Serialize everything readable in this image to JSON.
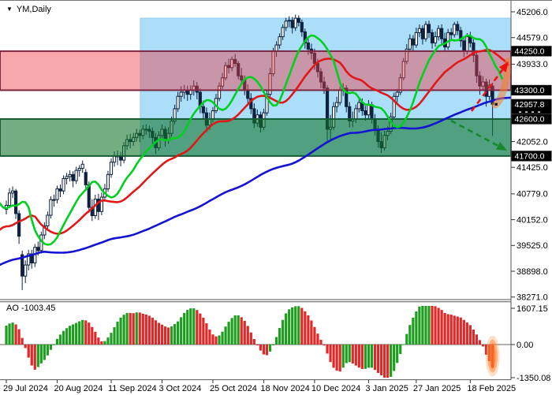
{
  "window": {
    "symbol": "YM,Daily",
    "dropdown_icon": "▼"
  },
  "price_axis": {
    "ticks": [
      45206.0,
      44579.0,
      43933.0,
      42052.0,
      41425.0,
      40779.0,
      40152.0,
      39525.0,
      38898.0,
      38271.0
    ],
    "badges": [
      44250.0,
      43300.0,
      42957.8,
      42600.0,
      41700.0
    ],
    "current_price": 42957.8
  },
  "time_axis": {
    "labels": [
      {
        "index": 0,
        "text": "29 Jul 2024"
      },
      {
        "index": 16,
        "text": "20 Aug 2024"
      },
      {
        "index": 33,
        "text": "11 Sep 2024"
      },
      {
        "index": 49,
        "text": "3 Oct 2024"
      },
      {
        "index": 65,
        "text": "25 Oct 2024"
      },
      {
        "index": 81,
        "text": "18 Nov 2024"
      },
      {
        "index": 97,
        "text": "10 Dec 2024"
      },
      {
        "index": 114,
        "text": "3 Jan 2025"
      },
      {
        "index": 129,
        "text": "27 Jan 2025"
      },
      {
        "index": 146,
        "text": "18 Feb 2025"
      }
    ]
  },
  "colors": {
    "candle_outline": "#0e2240",
    "candle_up_fill": "#ffffff",
    "candle_down_fill": "#0e2240",
    "lips_green": "#00d020",
    "teeth_red": "#e01818",
    "jaw_blue": "#1414d2",
    "ao_up": "#1e9e1e",
    "ao_down": "#e02828",
    "highlight_fill": "#abdef8",
    "highlight_edge": "#93cceb",
    "resistance_fill": "rgba(234,62,70,0.45)",
    "resistance_edge": "#7c2642",
    "support_fill": "rgba(16,118,42,0.58)",
    "support_edge": "#155c34",
    "arrow_up_red": "#ee1111",
    "arrow_down_green": "#17882c",
    "swoosh_orange": "rgba(250,128,40,0.55)",
    "badge_bg": "#000000",
    "badge_text": "#ffffff"
  },
  "chart_data": {
    "type": "candlestick+indicator",
    "symbol": "YM",
    "timeframe": "Daily",
    "price_range_visible": [
      38271.0,
      45206.0
    ],
    "zones": [
      {
        "name": "resistance-zone",
        "price_from": 43300.0,
        "price_to": 44250.0
      },
      {
        "name": "support-zone",
        "price_from": 41700.0,
        "price_to": 42600.0
      },
      {
        "name": "highlight-region",
        "start_bar_index": 42,
        "price_from": 41700.0,
        "price_to": 45050.0
      }
    ],
    "overlays": {
      "alligator": {
        "lips": {
          "period": 5,
          "shift": 3,
          "color": "#00d020"
        },
        "teeth": {
          "period": 13,
          "shift": 5,
          "color": "#e01818"
        },
        "jaw": {
          "period": 60,
          "shift": 8,
          "color": "#1414d2"
        }
      }
    },
    "indicator": {
      "name": "AO",
      "label": "AO -1003.45",
      "value": -1003.45,
      "axis_ticks": [
        "1607.15",
        "0.00",
        "-1350.08"
      ],
      "range": [
        -1350.08,
        1607.15
      ]
    },
    "annotations": [
      {
        "type": "arrow",
        "direction": "up",
        "color": "#ee1111",
        "from": [
          598,
          140
        ],
        "to": [
          645,
          77
        ],
        "target_price": 44250.0
      },
      {
        "type": "arrow",
        "direction": "down",
        "color": "#17882c",
        "from": [
          572,
          152
        ],
        "to": [
          643,
          190
        ],
        "target_price": 41700.0
      },
      {
        "type": "swoosh-highlight",
        "color": "rgba(250,128,40,0.55)"
      },
      {
        "type": "ao-bar-glow",
        "color": "orange"
      },
      {
        "type": "current-price-dot",
        "price": 42957.8
      }
    ],
    "preroll_closes": [
      38850,
      38900,
      38800,
      38750,
      38850,
      38900,
      38950,
      38900,
      38850,
      38950,
      39050,
      39150,
      39100,
      39200,
      39150,
      39300,
      39400,
      39350,
      39500,
      39700,
      40000,
      40250,
      40500,
      40900,
      41100,
      41200,
      41050,
      40850,
      40650,
      40250,
      40050,
      40350,
      40600,
      40650
    ],
    "candles": [
      [
        40400,
        40620,
        40280,
        40500
      ],
      [
        40500,
        40920,
        40430,
        40800
      ],
      [
        40800,
        40960,
        40680,
        40850
      ],
      [
        40850,
        40900,
        40170,
        40300
      ],
      [
        40300,
        40380,
        39560,
        39750
      ],
      [
        39300,
        39400,
        38440,
        38780
      ],
      [
        38780,
        39160,
        38610,
        39050
      ],
      [
        39050,
        39420,
        38920,
        39320
      ],
      [
        39320,
        39420,
        38960,
        39100
      ],
      [
        39100,
        39560,
        39000,
        39480
      ],
      [
        39480,
        39620,
        39280,
        39400
      ],
      [
        39400,
        39860,
        39330,
        39780
      ],
      [
        39780,
        40090,
        39680,
        40000
      ],
      [
        40000,
        40350,
        39920,
        40260
      ],
      [
        40260,
        40720,
        40180,
        40640
      ],
      [
        40640,
        40760,
        40470,
        40640
      ],
      [
        40640,
        40980,
        40550,
        40900
      ],
      [
        40900,
        41010,
        40700,
        40850
      ],
      [
        40850,
        41230,
        40770,
        41150
      ],
      [
        41150,
        41290,
        41010,
        41200
      ],
      [
        41200,
        41350,
        41080,
        41250
      ],
      [
        41250,
        41330,
        40940,
        41100
      ],
      [
        41100,
        41440,
        41020,
        41350
      ],
      [
        41350,
        41480,
        41200,
        41400
      ],
      [
        41400,
        41590,
        41290,
        41500
      ],
      [
        41300,
        41380,
        40870,
        41000
      ],
      [
        41000,
        41080,
        40320,
        40450
      ],
      [
        40450,
        40650,
        40120,
        40250
      ],
      [
        40250,
        40760,
        40170,
        40650
      ],
      [
        40650,
        40780,
        40140,
        40350
      ],
      [
        40350,
        40810,
        40260,
        40700
      ],
      [
        40700,
        41020,
        40590,
        40900
      ],
      [
        40900,
        41340,
        40830,
        41250
      ],
      [
        41250,
        41640,
        41170,
        41550
      ],
      [
        41550,
        41810,
        41440,
        41700
      ],
      [
        41700,
        41830,
        41480,
        41700
      ],
      [
        41700,
        41800,
        41450,
        41600
      ],
      [
        41600,
        42040,
        41520,
        41950
      ],
      [
        41950,
        42220,
        41850,
        42100
      ],
      [
        42100,
        42240,
        41890,
        42050
      ],
      [
        42050,
        42260,
        41950,
        42150
      ],
      [
        42150,
        42360,
        42050,
        42250
      ],
      [
        42250,
        42340,
        42040,
        42200
      ],
      [
        42200,
        42450,
        42110,
        42350
      ],
      [
        42350,
        42470,
        42220,
        42350
      ],
      [
        42350,
        42440,
        42140,
        42300
      ],
      [
        42300,
        42400,
        41990,
        42150
      ],
      [
        42150,
        42260,
        41750,
        41900
      ],
      [
        41900,
        42300,
        41830,
        42200
      ],
      [
        42200,
        42470,
        42090,
        42350
      ],
      [
        42350,
        42420,
        41930,
        42080
      ],
      [
        42080,
        42400,
        42000,
        42250
      ],
      [
        42250,
        42660,
        42170,
        42550
      ],
      [
        42550,
        42950,
        42470,
        42850
      ],
      [
        42850,
        43260,
        42770,
        43150
      ],
      [
        43150,
        43400,
        43020,
        43250
      ],
      [
        43250,
        43430,
        43090,
        43300
      ],
      [
        43300,
        43410,
        43040,
        43200
      ],
      [
        43200,
        43420,
        43070,
        43300
      ],
      [
        43300,
        43540,
        43170,
        43400
      ],
      [
        43400,
        43500,
        43080,
        43250
      ],
      [
        43250,
        43340,
        42740,
        42900
      ],
      [
        42900,
        43050,
        42590,
        42750
      ],
      [
        42750,
        42880,
        42280,
        42450
      ],
      [
        42450,
        42760,
        42340,
        42600
      ],
      [
        42600,
        42890,
        42520,
        42800
      ],
      [
        42800,
        43210,
        42740,
        43100
      ],
      [
        43100,
        43490,
        43030,
        43400
      ],
      [
        43400,
        43720,
        43330,
        43600
      ],
      [
        43600,
        43980,
        43540,
        43900
      ],
      [
        43900,
        44060,
        43710,
        43850
      ],
      [
        43850,
        44120,
        43760,
        44050
      ],
      [
        44050,
        44180,
        43870,
        43950
      ],
      [
        43950,
        44010,
        43560,
        43650
      ],
      [
        43650,
        43840,
        43470,
        43550
      ],
      [
        43550,
        43660,
        43180,
        43300
      ],
      [
        43300,
        43440,
        42960,
        43100
      ],
      [
        43100,
        43230,
        42720,
        42850
      ],
      [
        42850,
        42980,
        42380,
        42500
      ],
      [
        42500,
        42830,
        42410,
        42700
      ],
      [
        42700,
        42780,
        42270,
        42400
      ],
      [
        42400,
        42850,
        42330,
        42750
      ],
      [
        42750,
        43310,
        42680,
        43200
      ],
      [
        43200,
        43840,
        43130,
        43700
      ],
      [
        43700,
        44330,
        43640,
        44250
      ],
      [
        44250,
        44490,
        44110,
        44400
      ],
      [
        44400,
        44680,
        44310,
        44600
      ],
      [
        44600,
        44900,
        44520,
        44825
      ],
      [
        44825,
        45060,
        44740,
        44980
      ],
      [
        44980,
        45100,
        44830,
        45000
      ],
      [
        45000,
        45080,
        44680,
        44820
      ],
      [
        44820,
        45140,
        44740,
        45050
      ],
      [
        45050,
        45120,
        44850,
        44950
      ],
      [
        44950,
        45020,
        44600,
        44720
      ],
      [
        44720,
        44800,
        44310,
        44450
      ],
      [
        44450,
        44560,
        44160,
        44300
      ],
      [
        44300,
        44430,
        44050,
        44200
      ],
      [
        44200,
        44310,
        43800,
        43950
      ],
      [
        43950,
        44060,
        43610,
        43750
      ],
      [
        43750,
        43840,
        43350,
        43500
      ],
      [
        43500,
        43630,
        43210,
        43350
      ],
      [
        43350,
        43420,
        42070,
        42350
      ],
      [
        42350,
        42700,
        42080,
        42400
      ],
      [
        42400,
        43010,
        42330,
        42900
      ],
      [
        42900,
        43140,
        42760,
        43000
      ],
      [
        43000,
        43390,
        42930,
        43300
      ],
      [
        43300,
        43470,
        43160,
        43350
      ],
      [
        43350,
        43420,
        42760,
        42900
      ],
      [
        42900,
        43010,
        42390,
        42550
      ],
      [
        42550,
        42780,
        42400,
        42600
      ],
      [
        42600,
        42950,
        42500,
        42850
      ],
      [
        42850,
        43120,
        42760,
        43000
      ],
      [
        43000,
        43100,
        42680,
        42800
      ],
      [
        42800,
        42920,
        42560,
        42700
      ],
      [
        42700,
        43060,
        42610,
        42950
      ],
      [
        42950,
        43020,
        42490,
        42600
      ],
      [
        42600,
        42720,
        42200,
        42350
      ],
      [
        42350,
        42440,
        41900,
        42050
      ],
      [
        42050,
        42280,
        41770,
        41900
      ],
      [
        41900,
        42310,
        41830,
        42200
      ],
      [
        42200,
        42420,
        42080,
        42300
      ],
      [
        42300,
        42750,
        42230,
        42650
      ],
      [
        42650,
        43240,
        42590,
        43150
      ],
      [
        43150,
        43330,
        43000,
        43250
      ],
      [
        43250,
        43700,
        43180,
        43600
      ],
      [
        43600,
        44080,
        43540,
        44000
      ],
      [
        44000,
        44420,
        43930,
        44300
      ],
      [
        44300,
        44660,
        44220,
        44550
      ],
      [
        44550,
        44640,
        44240,
        44400
      ],
      [
        44400,
        44820,
        44330,
        44700
      ],
      [
        44700,
        44900,
        44590,
        44800
      ],
      [
        44800,
        44880,
        44410,
        44550
      ],
      [
        44550,
        44980,
        44480,
        44900
      ],
      [
        44900,
        44990,
        44570,
        44700
      ],
      [
        44700,
        44780,
        44310,
        44450
      ],
      [
        44450,
        44730,
        44360,
        44600
      ],
      [
        44600,
        44880,
        44510,
        44800
      ],
      [
        44800,
        44900,
        44420,
        44550
      ],
      [
        44550,
        44700,
        44230,
        44350
      ],
      [
        44350,
        44790,
        44280,
        44700
      ],
      [
        44700,
        44810,
        44500,
        44650
      ],
      [
        44650,
        44960,
        44580,
        44900
      ],
      [
        44900,
        44980,
        44640,
        44750
      ],
      [
        44750,
        44840,
        44350,
        44500
      ],
      [
        44500,
        44600,
        44110,
        44250
      ],
      [
        44250,
        44690,
        44170,
        44600
      ],
      [
        44600,
        44720,
        44340,
        44450
      ],
      [
        44450,
        44540,
        43980,
        44150
      ],
      [
        44150,
        44260,
        43480,
        43650
      ],
      [
        43650,
        43760,
        43190,
        43400
      ],
      [
        43400,
        43640,
        43280,
        43500
      ],
      [
        43500,
        43580,
        42900,
        43150
      ],
      [
        43150,
        43560,
        43060,
        43420
      ],
      [
        43400,
        43480,
        42190,
        42957.8
      ]
    ]
  }
}
